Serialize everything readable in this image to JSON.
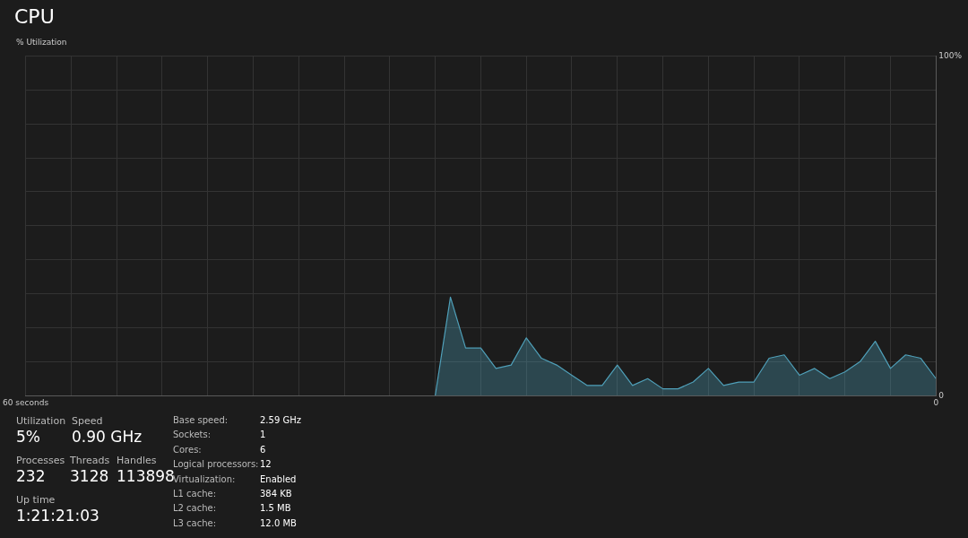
{
  "chart_data": [
    {
      "type": "area",
      "title": "CPU",
      "ylabel": "% Utilization",
      "x": [
        33,
        32,
        31,
        30,
        29,
        28,
        27,
        26,
        25,
        24,
        23,
        22,
        21,
        20,
        19,
        18,
        17,
        16,
        15,
        14,
        13,
        12,
        11,
        10,
        9,
        8,
        7,
        6,
        5,
        4,
        3,
        2,
        1,
        0
      ],
      "series": [
        {
          "color": "#4f9fb8",
          "values": [
            0,
            29,
            14,
            14,
            8,
            9,
            17,
            11,
            9,
            6,
            3,
            3,
            9,
            3,
            5,
            2,
            2,
            4,
            8,
            3,
            4,
            4,
            11,
            12,
            6,
            8,
            5,
            7,
            10,
            16,
            8,
            12,
            11,
            5
          ]
        }
      ],
      "xlim": [
        60,
        0
      ],
      "xticks": [
        {
          "value": 60,
          "label": "60 seconds"
        },
        {
          "value": 57,
          "label": null
        },
        {
          "value": 54,
          "label": null
        },
        {
          "value": 51,
          "label": null
        },
        {
          "value": 48,
          "label": null
        },
        {
          "value": 45,
          "label": null
        },
        {
          "value": 42,
          "label": null
        },
        {
          "value": 39,
          "label": null
        },
        {
          "value": 36,
          "label": null
        },
        {
          "value": 33,
          "label": null
        },
        {
          "value": 30,
          "label": null
        },
        {
          "value": 27,
          "label": null
        },
        {
          "value": 24,
          "label": null
        },
        {
          "value": 21,
          "label": null
        },
        {
          "value": 18,
          "label": null
        },
        {
          "value": 15,
          "label": null
        },
        {
          "value": 12,
          "label": null
        },
        {
          "value": 9,
          "label": null
        },
        {
          "value": 6,
          "label": null
        },
        {
          "value": 3,
          "label": null
        },
        {
          "value": 0,
          "label": "0"
        }
      ],
      "ylim": [
        0,
        100
      ],
      "yticks": [
        {
          "value": 0,
          "label": "0"
        },
        {
          "value": 10,
          "label": null
        },
        {
          "value": 20,
          "label": null
        },
        {
          "value": 30,
          "label": null
        },
        {
          "value": 40,
          "label": null
        },
        {
          "value": 50,
          "label": null
        },
        {
          "value": 60,
          "label": null
        },
        {
          "value": 70,
          "label": null
        },
        {
          "value": 80,
          "label": null
        },
        {
          "value": 90,
          "label": null
        },
        {
          "value": 100,
          "label": "100%"
        }
      ],
      "grid": true
    },
    {
      "type": "other",
      "annotations": [
        "Utilization",
        "5%",
        "Speed",
        "0.90 GHz",
        "Processes",
        "232",
        "Threads",
        "3128",
        "Handles",
        "113898",
        "Up time",
        "1:21:21:03",
        "Base speed:",
        "2.59 GHz",
        "Sockets:",
        "1",
        "Cores:",
        "6",
        "Logical processors:",
        "12",
        "Virtualization:",
        "Enabled",
        "L1 cache:",
        "384 KB",
        "L2 cache:",
        "1.5 MB",
        "L3 cache:",
        "12.0 MB"
      ]
    }
  ]
}
